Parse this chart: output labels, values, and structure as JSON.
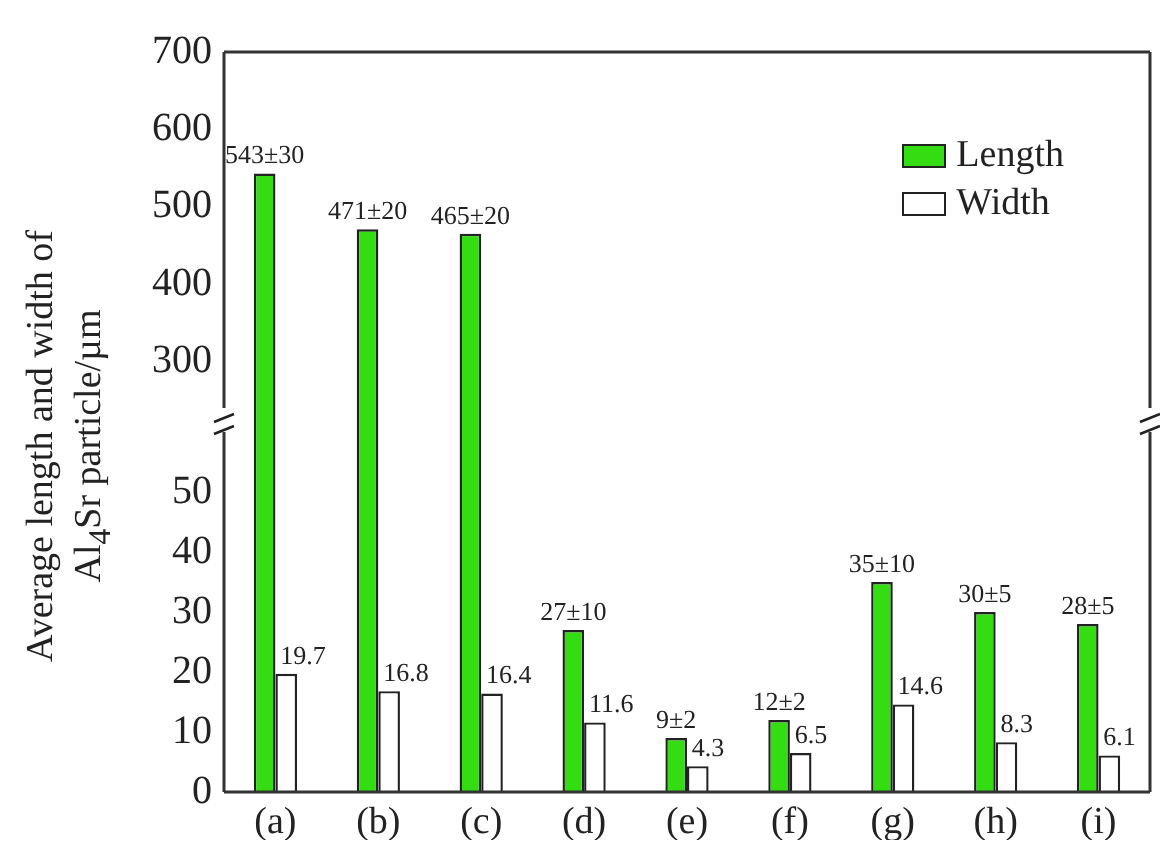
{
  "chart_data": [
    {
      "type": "bar",
      "ylabel": "Average length and width of Al$_{4}$Sr particle/µm",
      "tick_labels": "y",
      "ylim": [
        240,
        700
      ],
      "yticks": [
        300,
        400,
        500,
        600,
        700
      ],
      "legend": "top right",
      "series": [
        {
          "name": "Length",
          "color": "#33dd11",
          "values": [
            543,
            471,
            465,
            null,
            null,
            null,
            null,
            null,
            null
          ],
          "value_labels": [
            "543±30",
            "471±20",
            "465±20",
            null,
            null,
            null,
            null,
            null,
            null
          ]
        },
        {
          "name": "Width",
          "color": "#ffffff",
          "values": [
            null,
            null,
            null,
            null,
            null,
            null,
            null,
            null,
            null
          ]
        }
      ]
    },
    {
      "type": "bar",
      "categories": [
        "(a)",
        "(b)",
        "(c)",
        "(d)",
        "(e)",
        "(f)",
        "(g)",
        "(h)",
        "(i)"
      ],
      "ylim": [
        0,
        60
      ],
      "yticks": [
        0,
        10,
        20,
        30,
        40,
        50
      ],
      "series": [
        {
          "color": "#33dd11",
          "values": [
            null,
            null,
            null,
            27,
            9,
            12,
            35,
            30,
            28
          ],
          "value_labels": [
            null,
            null,
            null,
            "27±10",
            "9±2",
            "12±2",
            "35±10",
            "30±5",
            "28±5"
          ]
        },
        {
          "color": "#ffffff",
          "values": [
            19.7,
            16.8,
            16.4,
            11.6,
            4.3,
            6.5,
            14.6,
            8.3,
            6.1
          ],
          "value_labels": [
            "19.7",
            "16.8",
            "16.4",
            "11.6",
            "4.3",
            "6.5",
            "14.6",
            "8.3",
            "6.1"
          ]
        }
      ]
    }
  ]
}
